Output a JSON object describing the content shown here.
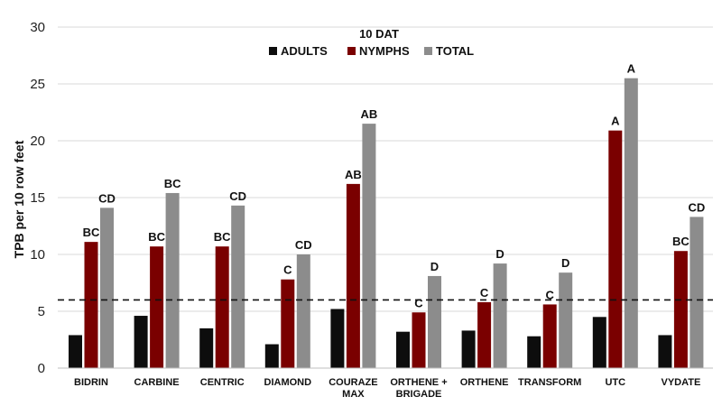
{
  "chart_data": {
    "type": "bar",
    "title": "10 DAT",
    "ylabel": "TPB per 10 row feet",
    "xlabel": "",
    "ylim": [
      0,
      30
    ],
    "yticks": [
      0,
      5,
      10,
      15,
      20,
      25,
      30
    ],
    "grid": "horizontal",
    "legend_position": "top-center",
    "threshold": 6,
    "categories": [
      [
        "BIDRIN"
      ],
      [
        "CARBINE"
      ],
      [
        "CENTRIC"
      ],
      [
        "DIAMOND"
      ],
      [
        "COURAZE",
        "MAX"
      ],
      [
        "ORTHENE +",
        "BRIGADE"
      ],
      [
        "ORTHENE"
      ],
      [
        "TRANSFORM"
      ],
      [
        "UTC"
      ],
      [
        "VYDATE"
      ]
    ],
    "series": [
      {
        "name": "ADULTS",
        "color": "#0d0d0d",
        "values": [
          2.9,
          4.6,
          3.5,
          2.1,
          5.2,
          3.2,
          3.3,
          2.8,
          4.5,
          2.9
        ],
        "labels": [
          "",
          "",
          "",
          "",
          "",
          "",
          "",
          "",
          "",
          ""
        ]
      },
      {
        "name": "NYMPHS",
        "color": "#7a0000",
        "values": [
          11.1,
          10.7,
          10.7,
          7.8,
          16.2,
          4.9,
          5.8,
          5.6,
          20.9,
          10.3
        ],
        "labels": [
          "BC",
          "BC",
          "BC",
          "C",
          "AB",
          "C",
          "C",
          "C",
          "A",
          "BC"
        ]
      },
      {
        "name": "TOTAL",
        "color": "#8c8c8c",
        "values": [
          14.1,
          15.4,
          14.3,
          10.0,
          21.5,
          8.1,
          9.2,
          8.4,
          25.5,
          13.3
        ],
        "labels": [
          "CD",
          "BC",
          "CD",
          "CD",
          "AB",
          "D",
          "D",
          "D",
          "A",
          "CD"
        ]
      }
    ]
  }
}
